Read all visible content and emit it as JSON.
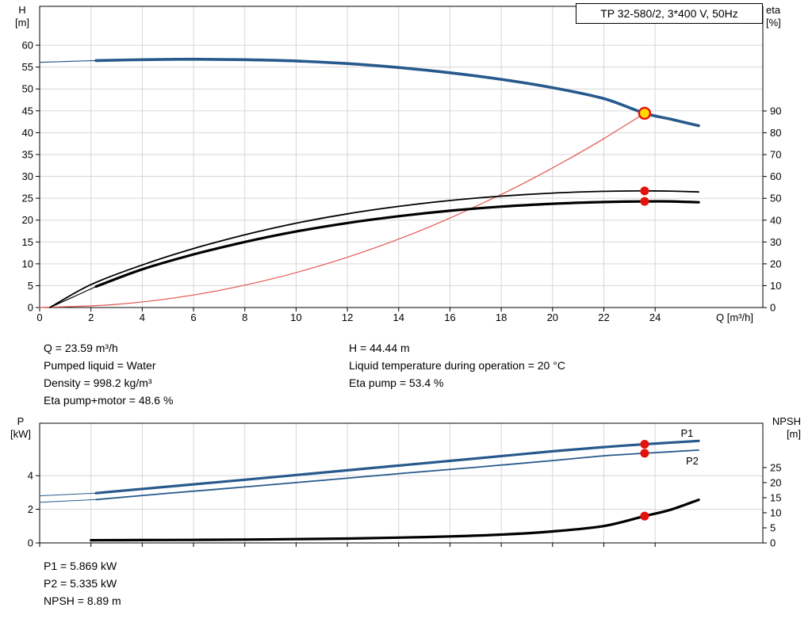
{
  "info_top": {
    "left": [
      "Q = 23.59 m³/h",
      "Pumped liquid = Water",
      "Density = 998.2 kg/m³",
      "Eta pump+motor = 48.6 %"
    ],
    "right": [
      "H = 44.44 m",
      "Liquid temperature during operation = 20 °C",
      "Eta pump = 53.4 %"
    ]
  },
  "info_bottom": [
    "P1 = 5.869 kW",
    "P2 = 5.335 kW",
    "NPSH = 8.89 m"
  ],
  "chart_data": [
    {
      "type": "line",
      "title": "TP 32-580/2, 3*400 V, 50Hz",
      "xlabel": "Q [m³/h]",
      "axis_left_label": [
        "H",
        "[m]"
      ],
      "axis_right_label": [
        "eta",
        "[%]"
      ],
      "xlim": [
        0,
        28.2
      ],
      "ylim_left": [
        0,
        68.9
      ],
      "ylim_right": [
        0,
        137.9
      ],
      "x_ticks": [
        0,
        2,
        4,
        6,
        8,
        10,
        12,
        14,
        16,
        18,
        20,
        22,
        24
      ],
      "left_ticks": [
        0,
        5,
        10,
        15,
        20,
        25,
        30,
        35,
        40,
        45,
        50,
        55,
        60
      ],
      "right_ticks": [
        0,
        10,
        20,
        30,
        40,
        50,
        60,
        70,
        80,
        90
      ],
      "grid": true,
      "series": [
        {
          "name": "h-curve-lead",
          "axis": "left",
          "color": "#27598c",
          "width": 1.2,
          "points": [
            [
              0,
              56.1
            ],
            [
              1.1,
              56.3
            ],
            [
              2.2,
              56.5
            ]
          ]
        },
        {
          "name": "h-curve",
          "axis": "left",
          "color": "#27598c",
          "width": 3.6,
          "points": [
            [
              2.2,
              56.5
            ],
            [
              4,
              56.7
            ],
            [
              6,
              56.8
            ],
            [
              8,
              56.7
            ],
            [
              10,
              56.4
            ],
            [
              12,
              55.8
            ],
            [
              14,
              54.9
            ],
            [
              16,
              53.7
            ],
            [
              18,
              52.2
            ],
            [
              20,
              50.3
            ],
            [
              22,
              47.8
            ],
            [
              23.59,
              44.44
            ],
            [
              24.6,
              43.1
            ],
            [
              25.7,
              41.6
            ]
          ]
        },
        {
          "name": "system-curve",
          "axis": "left",
          "color": "#e4564f",
          "width": 1.2,
          "points": [
            [
              0,
              0
            ],
            [
              3,
              0.72
            ],
            [
              6,
              2.87
            ],
            [
              9,
              6.47
            ],
            [
              12,
              11.5
            ],
            [
              15,
              17.97
            ],
            [
              18,
              25.88
            ],
            [
              20,
              31.93
            ],
            [
              21.8,
              37.93
            ],
            [
              23.59,
              44.44
            ]
          ]
        },
        {
          "name": "eta-pump-curve",
          "axis": "right",
          "color": "#000000",
          "width": 1.8,
          "points": [
            [
              0.4,
              0
            ],
            [
              2,
              10.5
            ],
            [
              4,
              19.5
            ],
            [
              6,
              27
            ],
            [
              8,
              33.3
            ],
            [
              10,
              38.6
            ],
            [
              12,
              42.9
            ],
            [
              14,
              46.3
            ],
            [
              16,
              49
            ],
            [
              18,
              51
            ],
            [
              20,
              52.4
            ],
            [
              22,
              53.2
            ],
            [
              23.59,
              53.4
            ],
            [
              24.6,
              53.3
            ],
            [
              25.7,
              52.9
            ]
          ]
        },
        {
          "name": "eta-pump-motor-lead",
          "axis": "right",
          "color": "#000000",
          "width": 1.2,
          "points": [
            [
              0.4,
              0
            ],
            [
              1.3,
              4.8
            ],
            [
              2.2,
              9.6
            ]
          ]
        },
        {
          "name": "eta-pump-motor-curve",
          "axis": "right",
          "color": "#000000",
          "width": 3.2,
          "points": [
            [
              2.2,
              9.6
            ],
            [
              4,
              17.5
            ],
            [
              6,
              24.3
            ],
            [
              8,
              30
            ],
            [
              10,
              34.8
            ],
            [
              12,
              38.7
            ],
            [
              14,
              41.8
            ],
            [
              16,
              44.3
            ],
            [
              18,
              46.2
            ],
            [
              20,
              47.5
            ],
            [
              22,
              48.3
            ],
            [
              23.59,
              48.6
            ],
            [
              24.6,
              48.6
            ],
            [
              25.7,
              48.2
            ]
          ]
        }
      ],
      "markers": [
        {
          "name": "duty-point",
          "q": 23.59,
          "v": 44.44,
          "axis": "left",
          "type": "duty",
          "fill": "#ffd800",
          "stroke": "#e3120b"
        },
        {
          "name": "eta-pump-point",
          "q": 23.59,
          "v": 53.4,
          "axis": "right",
          "type": "dot",
          "fill": "#e3120b"
        },
        {
          "name": "eta-pump-motor-point",
          "q": 23.59,
          "v": 48.6,
          "axis": "right",
          "type": "dot",
          "fill": "#e3120b"
        }
      ],
      "annotations": []
    },
    {
      "type": "line",
      "title": "",
      "xlabel": "",
      "axis_left_label": [
        "P",
        "[kW]"
      ],
      "axis_right_label": [
        "NPSH",
        "[m]"
      ],
      "xlim": [
        0,
        28.2
      ],
      "ylim_left": [
        0,
        7.12
      ],
      "ylim_right": [
        0,
        39.7
      ],
      "x_ticks": [
        0,
        2,
        4,
        6,
        8,
        10,
        12,
        14,
        16,
        18,
        20,
        22,
        24
      ],
      "x_tick_labels": false,
      "left_ticks": [
        0,
        2,
        4
      ],
      "right_ticks": [
        0,
        5,
        10,
        15,
        20,
        25
      ],
      "grid": true,
      "series": [
        {
          "name": "p1-curve-lead",
          "axis": "left",
          "color": "#27598c",
          "width": 1,
          "points": [
            [
              0,
              2.8
            ],
            [
              1.1,
              2.88
            ],
            [
              2.2,
              2.96
            ]
          ]
        },
        {
          "name": "p1-curve",
          "axis": "left",
          "color": "#27598c",
          "width": 3.2,
          "points": [
            [
              2.2,
              2.96
            ],
            [
              5,
              3.35
            ],
            [
              8,
              3.76
            ],
            [
              11,
              4.18
            ],
            [
              14,
              4.6
            ],
            [
              17,
              5.02
            ],
            [
              20,
              5.45
            ],
            [
              22,
              5.7
            ],
            [
              23.59,
              5.869
            ],
            [
              25.7,
              6.07
            ]
          ]
        },
        {
          "name": "p2-curve-lead",
          "axis": "left",
          "color": "#27598c",
          "width": 1,
          "points": [
            [
              0,
              2.42
            ],
            [
              1.1,
              2.5
            ],
            [
              2.2,
              2.58
            ]
          ]
        },
        {
          "name": "p2-curve",
          "axis": "left",
          "color": "#27598c",
          "width": 1.8,
          "points": [
            [
              2.2,
              2.58
            ],
            [
              5,
              2.95
            ],
            [
              8,
              3.33
            ],
            [
              11,
              3.72
            ],
            [
              14,
              4.12
            ],
            [
              17,
              4.5
            ],
            [
              20,
              4.9
            ],
            [
              22,
              5.18
            ],
            [
              23.59,
              5.335
            ],
            [
              25.7,
              5.52
            ]
          ]
        },
        {
          "name": "npsh-curve",
          "axis": "right",
          "color": "#000000",
          "width": 3.2,
          "points": [
            [
              2,
              0.9
            ],
            [
              4,
              0.95
            ],
            [
              6,
              1.0
            ],
            [
              8,
              1.1
            ],
            [
              10,
              1.25
            ],
            [
              12,
              1.45
            ],
            [
              14,
              1.75
            ],
            [
              16,
              2.15
            ],
            [
              18,
              2.75
            ],
            [
              20,
              3.8
            ],
            [
              22,
              5.6
            ],
            [
              23.59,
              8.89
            ],
            [
              24.6,
              11
            ],
            [
              25.7,
              14.3
            ]
          ]
        }
      ],
      "markers": [
        {
          "name": "p1-point",
          "q": 23.59,
          "v": 5.869,
          "axis": "left",
          "type": "dot",
          "fill": "#e3120b"
        },
        {
          "name": "p2-point",
          "q": 23.59,
          "v": 5.335,
          "axis": "left",
          "type": "dot",
          "fill": "#e3120b"
        },
        {
          "name": "npsh-point",
          "q": 23.59,
          "v": 8.89,
          "axis": "right",
          "type": "dot",
          "fill": "#e3120b"
        }
      ],
      "annotations": [
        {
          "text": "P1",
          "q": 25.0,
          "v": 6.55,
          "axis": "left",
          "color": "#2a64a8"
        },
        {
          "text": "P2",
          "q": 25.2,
          "v": 4.9,
          "axis": "left",
          "color": "#2a64a8"
        }
      ]
    }
  ]
}
